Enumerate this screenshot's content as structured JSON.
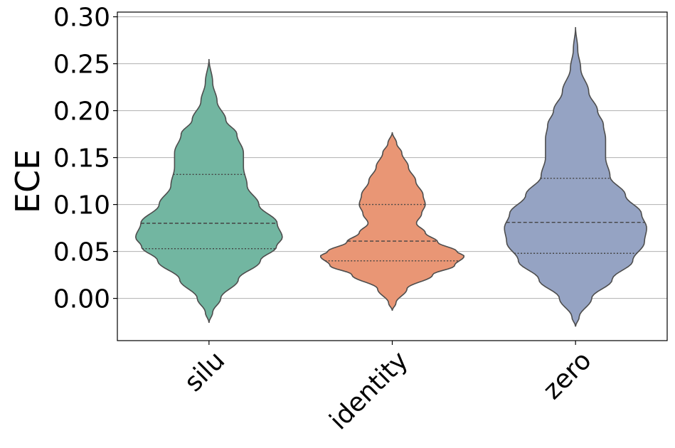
{
  "chart_data": {
    "type": "violin",
    "title": "",
    "xlabel": "",
    "ylabel": "ECE",
    "ylim": [
      -0.045,
      0.305
    ],
    "yticks": [
      "0.00",
      "0.05",
      "0.10",
      "0.15",
      "0.20",
      "0.25",
      "0.30"
    ],
    "grid": "horizontal",
    "categories": [
      "silu",
      "identity",
      "zero"
    ],
    "violins": [
      {
        "category": "silu",
        "color": "#72b6a1",
        "min": -0.026,
        "max": 0.255,
        "q1": 0.053,
        "median": 0.08,
        "q3": 0.132,
        "profile": [
          [
            -0.026,
            0.0
          ],
          [
            -0.015,
            0.05
          ],
          [
            0.0,
            0.16
          ],
          [
            0.02,
            0.4
          ],
          [
            0.04,
            0.7
          ],
          [
            0.055,
            0.92
          ],
          [
            0.065,
            1.0
          ],
          [
            0.08,
            0.93
          ],
          [
            0.1,
            0.68
          ],
          [
            0.12,
            0.52
          ],
          [
            0.14,
            0.47
          ],
          [
            0.155,
            0.47
          ],
          [
            0.175,
            0.38
          ],
          [
            0.19,
            0.23
          ],
          [
            0.21,
            0.11
          ],
          [
            0.23,
            0.05
          ],
          [
            0.255,
            0.0
          ]
        ]
      },
      {
        "category": "identity",
        "color": "#e99675",
        "min": -0.013,
        "max": 0.177,
        "q1": 0.04,
        "median": 0.061,
        "q3": 0.1,
        "profile": [
          [
            -0.013,
            0.0
          ],
          [
            -0.005,
            0.05
          ],
          [
            0.01,
            0.2
          ],
          [
            0.025,
            0.55
          ],
          [
            0.035,
            0.85
          ],
          [
            0.045,
            0.98
          ],
          [
            0.05,
            0.88
          ],
          [
            0.06,
            0.62
          ],
          [
            0.07,
            0.45
          ],
          [
            0.08,
            0.33
          ],
          [
            0.09,
            0.4
          ],
          [
            0.1,
            0.45
          ],
          [
            0.11,
            0.42
          ],
          [
            0.125,
            0.32
          ],
          [
            0.14,
            0.22
          ],
          [
            0.155,
            0.13
          ],
          [
            0.165,
            0.06
          ],
          [
            0.177,
            0.0
          ]
        ]
      },
      {
        "category": "zero",
        "color": "#95a3c3",
        "min": -0.03,
        "max": 0.289,
        "q1": 0.048,
        "median": 0.081,
        "q3": 0.128,
        "profile": [
          [
            -0.03,
            0.0
          ],
          [
            -0.02,
            0.05
          ],
          [
            0.0,
            0.22
          ],
          [
            0.02,
            0.5
          ],
          [
            0.04,
            0.78
          ],
          [
            0.06,
            0.94
          ],
          [
            0.075,
            0.97
          ],
          [
            0.09,
            0.9
          ],
          [
            0.11,
            0.68
          ],
          [
            0.13,
            0.47
          ],
          [
            0.15,
            0.41
          ],
          [
            0.17,
            0.41
          ],
          [
            0.185,
            0.38
          ],
          [
            0.2,
            0.3
          ],
          [
            0.22,
            0.18
          ],
          [
            0.245,
            0.07
          ],
          [
            0.265,
            0.03
          ],
          [
            0.289,
            0.0
          ]
        ]
      }
    ]
  }
}
